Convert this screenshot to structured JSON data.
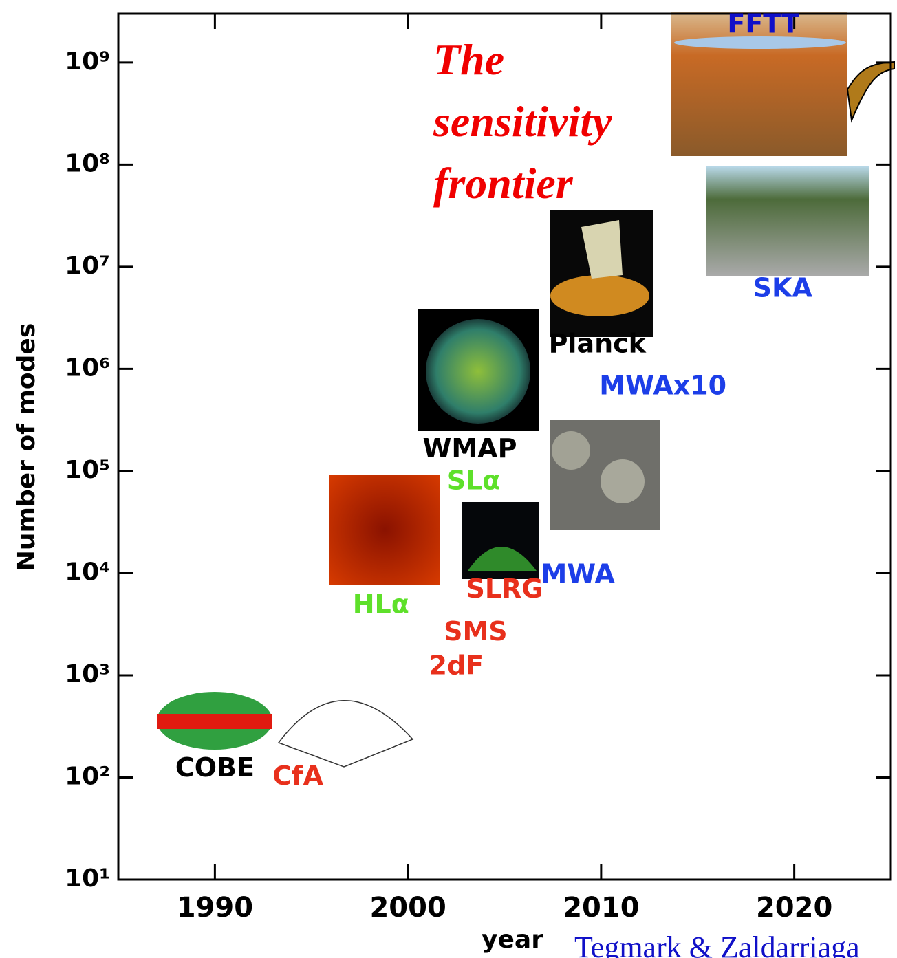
{
  "chart_data": {
    "type": "scatter",
    "title": "The sensitivity frontier",
    "xlabel": "year",
    "ylabel": "Number of modes",
    "credit": "Tegmark & Zaldarriaga",
    "log_y": true,
    "xlim": [
      1985,
      2025
    ],
    "ylim": [
      10,
      3000000000
    ],
    "xticks": [
      1990,
      2000,
      2010,
      2020
    ],
    "yticks": [
      {
        "value": 10,
        "label": "10¹"
      },
      {
        "value": 100,
        "label": "10²"
      },
      {
        "value": 1000,
        "label": "10³"
      },
      {
        "value": 10000,
        "label": "10⁴"
      },
      {
        "value": 100000,
        "label": "10⁵"
      },
      {
        "value": 1000000,
        "label": "10⁶"
      },
      {
        "value": 10000000,
        "label": "10⁷"
      },
      {
        "value": 100000000,
        "label": "10⁸"
      },
      {
        "value": 1000000000,
        "label": "10⁹"
      }
    ],
    "annotations": [
      {
        "text": "COBE",
        "x": 1990,
        "y": 120,
        "color": "#000000"
      },
      {
        "text": "CfA",
        "x": 1994.3,
        "y": 100,
        "color": "#e8301c"
      },
      {
        "text": "HLα",
        "x": 1998.6,
        "y": 4800,
        "color": "#5ee02a"
      },
      {
        "text": "SLα",
        "x": 2003.4,
        "y": 78000,
        "color": "#5ee02a"
      },
      {
        "text": "SMS",
        "x": 2003.5,
        "y": 2600,
        "color": "#e8301c"
      },
      {
        "text": "2dF",
        "x": 2002.5,
        "y": 1200,
        "color": "#e8301c"
      },
      {
        "text": "SLRG",
        "x": 2005,
        "y": 6800,
        "color": "#e8301c"
      },
      {
        "text": "MWA",
        "x": 2008.8,
        "y": 9500,
        "color": "#1c3ee8"
      },
      {
        "text": "WMAP",
        "x": 2003.2,
        "y": 160000,
        "color": "#000000"
      },
      {
        "text": "Planck",
        "x": 2009.8,
        "y": 1700000,
        "color": "#000000"
      },
      {
        "text": "MWAx10",
        "x": 2013.2,
        "y": 660000,
        "color": "#1c3ee8"
      },
      {
        "text": "SKA",
        "x": 2019.4,
        "y": 6000000,
        "color": "#1c3ee8"
      },
      {
        "text": "FFTT",
        "x": 2018.4,
        "y": 2300000000,
        "color": "#1010c8"
      }
    ]
  }
}
